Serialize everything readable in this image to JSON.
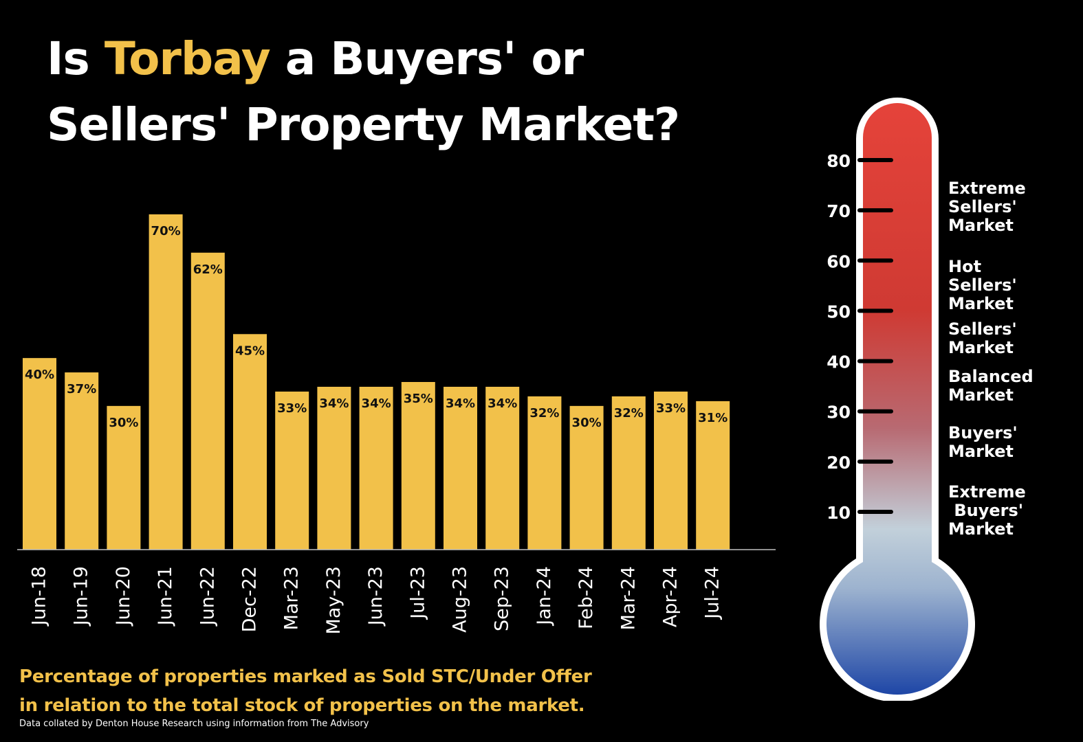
{
  "title": {
    "line1_pre": "Is ",
    "line1_highlight": "Torbay",
    "line1_post": " a Buyers' or",
    "line2": "Sellers' Property Market?"
  },
  "subtitle": {
    "line1": "Percentage of properties marked as Sold STC/Under Offer",
    "line2": "in relation to the total stock of properties on the market."
  },
  "credit": "Data collated by Denton House Research using information from The Advisory",
  "colors": {
    "background": "#000000",
    "bar": "#f2c14a",
    "highlight": "#f2c14a",
    "thermo_top": "#e5433a",
    "thermo_mid": "#c2d0da",
    "thermo_bottom": "#1e46a6"
  },
  "chart_data": {
    "type": "bar",
    "categories": [
      "Jun-18",
      "Jun-19",
      "Jun-20",
      "Jun-21",
      "Jun-22",
      "Dec-22",
      "Mar-23",
      "May-23",
      "Jun-23",
      "Jul-23",
      "Aug-23",
      "Sep-23",
      "Jan-24",
      "Feb-24",
      "Mar-24",
      "Apr-24",
      "Jul-24"
    ],
    "values": [
      40,
      37,
      30,
      70,
      62,
      45,
      33,
      34,
      34,
      35,
      34,
      34,
      32,
      30,
      32,
      33,
      31
    ],
    "data_labels": [
      "40%",
      "37%",
      "30%",
      "70%",
      "62%",
      "45%",
      "33%",
      "34%",
      "34%",
      "35%",
      "34%",
      "34%",
      "32%",
      "30%",
      "32%",
      "33%",
      "31%"
    ],
    "ylim": [
      0,
      70
    ],
    "grid": false,
    "legend": "none"
  },
  "thermometer": {
    "ticks": [
      "80",
      "70",
      "60",
      "50",
      "40",
      "30",
      "20",
      "10"
    ],
    "tick_values": [
      80,
      70,
      60,
      50,
      40,
      30,
      20,
      10
    ],
    "zones": [
      {
        "lines": [
          "Extreme",
          "Sellers'",
          "Market"
        ]
      },
      {
        "lines": [
          "Hot",
          "Sellers'",
          "Market"
        ]
      },
      {
        "lines": [
          "Sellers'",
          "Market"
        ]
      },
      {
        "lines": [
          "Balanced",
          "Market"
        ]
      },
      {
        "lines": [
          "Buyers'",
          "Market"
        ]
      },
      {
        "lines": [
          "Extreme",
          " Buyers'",
          "Market"
        ]
      }
    ]
  }
}
